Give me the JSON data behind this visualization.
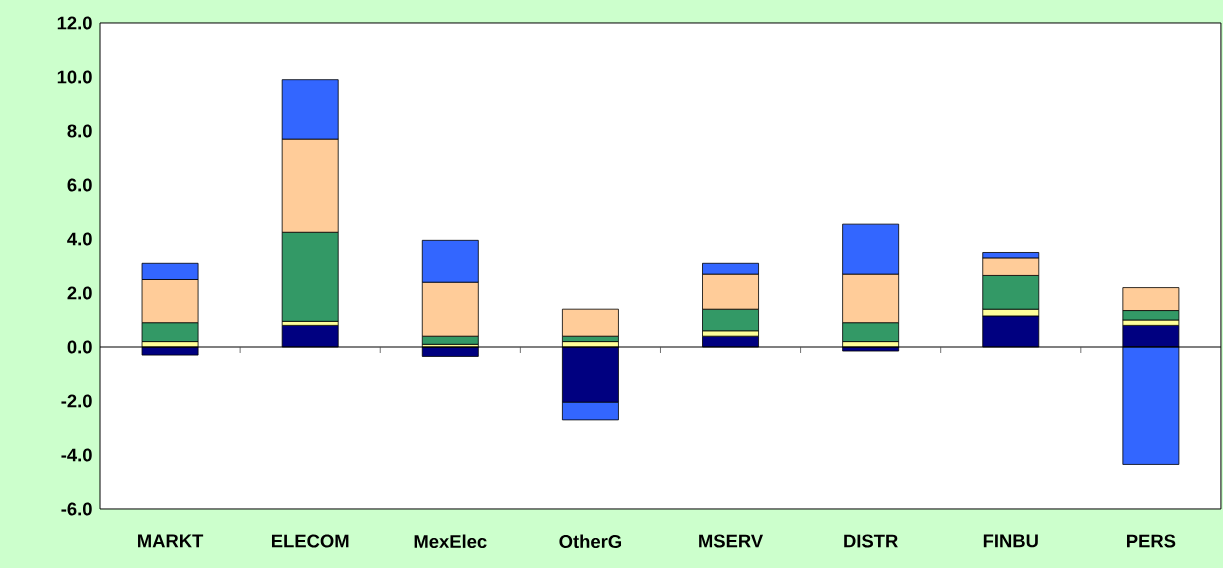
{
  "chart_data": {
    "type": "bar",
    "stacked": true,
    "categories": [
      "MARKT",
      "ELECOM",
      "MexElec",
      "OtherG",
      "MSERV",
      "DISTR",
      "FINBU",
      "PERS"
    ],
    "series": [
      {
        "color": "#000080",
        "values": [
          -0.3,
          0.8,
          -0.35,
          -2.05,
          0.4,
          -0.15,
          1.15,
          0.8
        ]
      },
      {
        "color": "#ffff99",
        "values": [
          0.2,
          0.15,
          0.1,
          0.2,
          0.2,
          0.2,
          0.25,
          0.2
        ]
      },
      {
        "color": "#339966",
        "values": [
          0.7,
          3.3,
          0.3,
          0.2,
          0.8,
          0.7,
          1.25,
          0.35
        ]
      },
      {
        "color": "#ffcc99",
        "values": [
          1.6,
          3.45,
          2.0,
          1.0,
          1.3,
          1.8,
          0.65,
          0.85
        ]
      },
      {
        "color": "#3366ff",
        "values": [
          0.6,
          2.2,
          1.55,
          -0.65,
          0.4,
          1.85,
          0.2,
          -4.35
        ]
      }
    ],
    "ylim": [
      -6,
      12
    ],
    "yticks": [
      {
        "value": -6,
        "label": "-6.0"
      },
      {
        "value": -4,
        "label": "-4.0"
      },
      {
        "value": -2,
        "label": "-2.0"
      },
      {
        "value": 0,
        "label": "0.0"
      },
      {
        "value": 2,
        "label": "2.0"
      },
      {
        "value": 4,
        "label": "4.0"
      },
      {
        "value": 6,
        "label": "6.0"
      },
      {
        "value": 8,
        "label": "8.0"
      },
      {
        "value": 10,
        "label": "10.0"
      },
      {
        "value": 12,
        "label": "12.0"
      }
    ]
  }
}
